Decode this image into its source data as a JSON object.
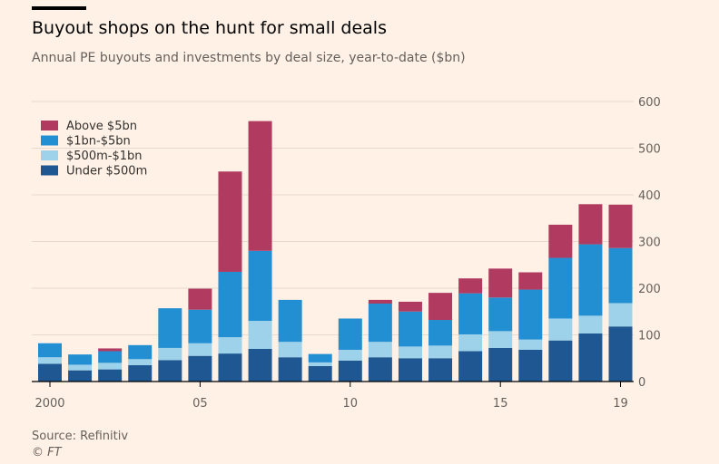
{
  "title": "Buyout shops on the hunt for small deals",
  "subtitle": "Annual PE buyouts and investments by deal size, year-to-date ($bn)",
  "source": "Source: Refinitiv",
  "copyright": "© FT",
  "chart_data": {
    "type": "bar",
    "stacked": true,
    "categories": [
      "2000",
      "2001",
      "2002",
      "2003",
      "2004",
      "2005",
      "2006",
      "2007",
      "2008",
      "2009",
      "2010",
      "2011",
      "2012",
      "2013",
      "2014",
      "2015",
      "2016",
      "2017",
      "2018",
      "2019"
    ],
    "x_tick_labels": [
      {
        "category": "2000",
        "label": "2000"
      },
      {
        "category": "2005",
        "label": "05"
      },
      {
        "category": "2010",
        "label": "10"
      },
      {
        "category": "2015",
        "label": "15"
      },
      {
        "category": "2019",
        "label": "19"
      }
    ],
    "y_ticks": [
      0,
      100,
      200,
      300,
      400,
      500,
      600
    ],
    "ylim": [
      0,
      600
    ],
    "grid": true,
    "y_axis_side": "right",
    "legend_position": "top-left",
    "series": [
      {
        "name": "Under $500m",
        "color": "#1f5792",
        "values": [
          38,
          24,
          26,
          35,
          46,
          55,
          60,
          70,
          52,
          33,
          45,
          52,
          50,
          50,
          65,
          72,
          68,
          88,
          103,
          118
        ]
      },
      {
        "name": "$500m-$1bn",
        "color": "#9dd2ea",
        "values": [
          14,
          12,
          14,
          13,
          26,
          27,
          35,
          60,
          33,
          8,
          23,
          33,
          25,
          27,
          36,
          36,
          22,
          47,
          38,
          50
        ]
      },
      {
        "name": "$1bn-$5bn",
        "color": "#238fd3",
        "values": [
          30,
          22,
          25,
          30,
          85,
          72,
          140,
          150,
          90,
          18,
          67,
          82,
          75,
          55,
          88,
          72,
          107,
          130,
          153,
          118
        ]
      },
      {
        "name": "Above $5bn",
        "color": "#b13a61",
        "values": [
          0,
          0,
          6,
          0,
          0,
          45,
          215,
          278,
          0,
          0,
          0,
          8,
          21,
          58,
          32,
          62,
          37,
          71,
          86,
          93
        ]
      }
    ]
  }
}
